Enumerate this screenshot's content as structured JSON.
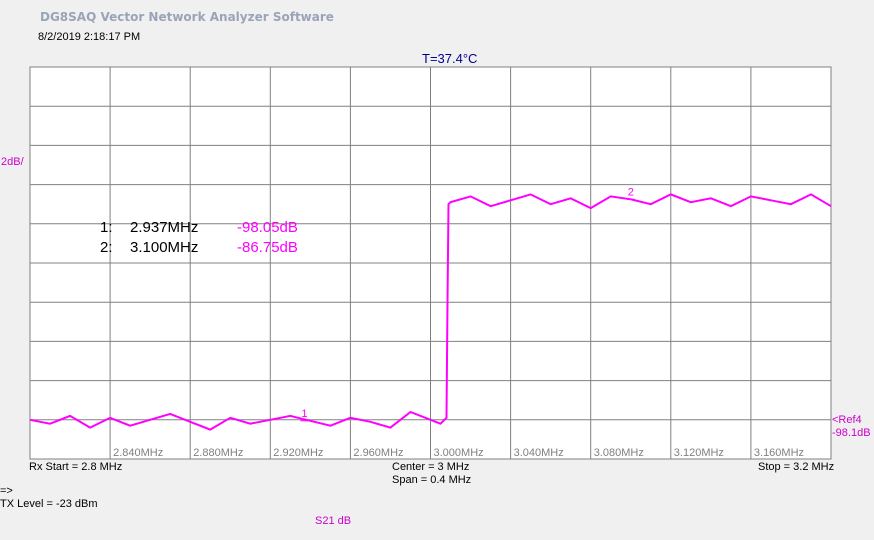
{
  "app_title": "DG8SAQ Vector Network Analyzer Software",
  "timestamp": "8/2/2019   2:18:17 PM",
  "temperature": "T=37.4°C",
  "scale_label": "2dB/",
  "ref_label": "<Ref4",
  "ref_value": "-98.1dB",
  "rx_start": "Rx Start = 2.8 MHz",
  "center": "Center = 3 MHz",
  "span": "Span = 0.4 MHz",
  "stop": "Stop = 3.2 MHz",
  "prompt": "=>",
  "tx_level": "TX Level = -23 dBm",
  "trace_label": "S21  dB",
  "colors": {
    "trace": "#ff00ff",
    "grid": "#808080",
    "label": "#cc00cc"
  },
  "chart_data": {
    "type": "line",
    "x_unit": "MHz",
    "xlim": [
      2.8,
      3.2
    ],
    "ylim": [
      -100,
      -80
    ],
    "y_ref": -98.1,
    "y_per_div": 2,
    "x_tick_labels": [
      {
        "x": 2.84,
        "label": "2.840MHz"
      },
      {
        "x": 2.88,
        "label": "2.880MHz"
      },
      {
        "x": 2.92,
        "label": "2.920MHz"
      },
      {
        "x": 2.96,
        "label": "2.960MHz"
      },
      {
        "x": 3.0,
        "label": "3.000MHz"
      },
      {
        "x": 3.04,
        "label": "3.040MHz"
      },
      {
        "x": 3.08,
        "label": "3.080MHz"
      },
      {
        "x": 3.12,
        "label": "3.120MHz"
      },
      {
        "x": 3.16,
        "label": "3.160MHz"
      }
    ],
    "markers": [
      {
        "id": "1",
        "index": "1:",
        "freq": "2.937MHz",
        "value": "-98.05dB",
        "x": 2.937,
        "y": -98.05
      },
      {
        "id": "2",
        "index": "2:",
        "freq": "3.100MHz",
        "value": "-86.75dB",
        "x": 3.1,
        "y": -86.75
      }
    ],
    "series": [
      {
        "x": [
          2.8,
          2.81,
          2.82,
          2.83,
          2.84,
          2.85,
          2.86,
          2.87,
          2.88,
          2.89,
          2.9,
          2.91,
          2.92,
          2.93,
          2.94,
          2.95,
          2.96,
          2.97,
          2.98,
          2.99,
          3.0,
          3.005,
          3.008,
          3.0085,
          3.009,
          3.01,
          3.02,
          3.03,
          3.04,
          3.05,
          3.06,
          3.07,
          3.08,
          3.09,
          3.1,
          3.11,
          3.12,
          3.13,
          3.14,
          3.15,
          3.16,
          3.17,
          3.18,
          3.19,
          3.2
        ],
        "y": [
          -98.0,
          -98.2,
          -97.8,
          -98.4,
          -97.9,
          -98.3,
          -98.0,
          -97.7,
          -98.1,
          -98.5,
          -97.9,
          -98.2,
          -98.0,
          -97.8,
          -98.05,
          -98.3,
          -97.9,
          -98.1,
          -98.4,
          -97.6,
          -98.0,
          -98.2,
          -97.9,
          -92.0,
          -87.0,
          -86.9,
          -86.6,
          -87.1,
          -86.8,
          -86.5,
          -87.0,
          -86.7,
          -87.2,
          -86.6,
          -86.75,
          -87.0,
          -86.5,
          -86.9,
          -86.7,
          -87.1,
          -86.6,
          -86.8,
          -87.0,
          -86.5,
          -87.1
        ]
      }
    ]
  }
}
